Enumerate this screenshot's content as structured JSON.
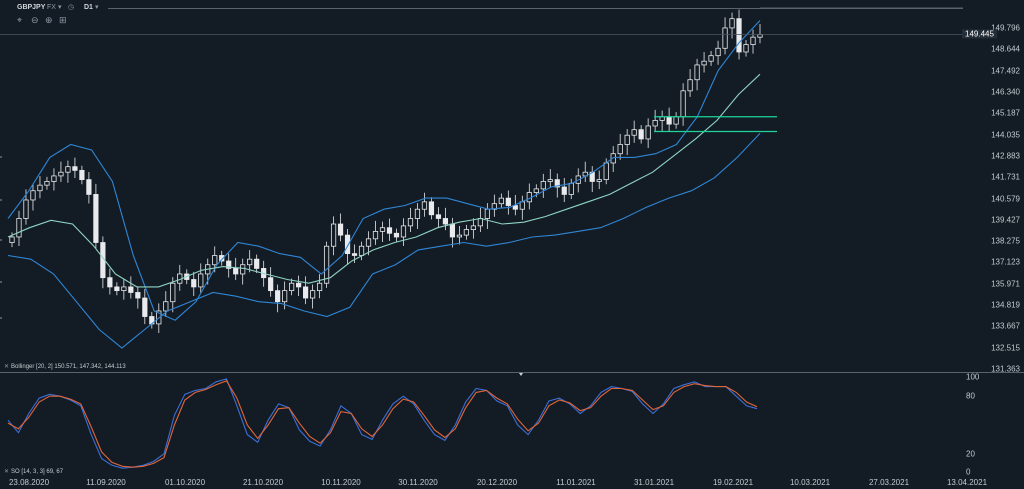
{
  "toolbar": {
    "symbol": "GBPJPY",
    "market": "FX",
    "timeframe": "D1"
  },
  "icons": {
    "crosshair": "crosshair-icon",
    "zoom_out": "zoom-out-icon",
    "zoom_in": "zoom-in-icon",
    "fit": "fit-icon",
    "clock": "clock-icon"
  },
  "indicators": {
    "bollinger": "Bollinger [20, 2] 150.571, 147.342, 144.113",
    "stochastic": "SO [14, 3, 3] 69, 67"
  },
  "price_axis": {
    "labels": [
      "149.796",
      "148.644",
      "147.492",
      "146.340",
      "145.187",
      "144.035",
      "142.883",
      "141.731",
      "140.579",
      "139.427",
      "138.275",
      "137.123",
      "135.971",
      "134.819",
      "133.667",
      "132.515",
      "131.363"
    ],
    "current_price": "149.445"
  },
  "osc_axis": {
    "labels": [
      "100",
      "80",
      "20",
      "0"
    ]
  },
  "date_axis": {
    "labels": [
      "23.08.2020",
      "11.09.2020",
      "01.10.2020",
      "21.10.2020",
      "10.11.2020",
      "30.11.2020",
      "20.12.2020",
      "11.01.2021",
      "31.01.2021",
      "19.02.2021",
      "10.03.2021",
      "27.03.2021",
      "13.04.2021"
    ]
  },
  "colors": {
    "background": "#131c24",
    "candle": "#e8eaed",
    "bollinger_band": "#2f86d6",
    "bollinger_mid": "#8fd4c4",
    "level_lines": "#1fd39a",
    "stoch_k": "#3b6fd8",
    "stoch_d": "#e0653a"
  },
  "chart_data": [
    {
      "type": "candlestick",
      "series": [
        {
          "name": "GBPJPY",
          "values": [
            138.5,
            139.5,
            140.5,
            141.0,
            141.3,
            141.5,
            141.8,
            142.0,
            142.3,
            142.1,
            141.6,
            140.8,
            138.2,
            136.3,
            135.8,
            135.6,
            135.8,
            135.5,
            135.2,
            134.2,
            133.8,
            134.5,
            135.0,
            136.0,
            136.5,
            136.2,
            135.8,
            136.5,
            137.0,
            137.5,
            137.2,
            136.8,
            136.5,
            137.0,
            137.3,
            136.8,
            136.3,
            135.6,
            135.0,
            135.6,
            136.0,
            135.8,
            135.2,
            135.6,
            136.0,
            138.0,
            139.2,
            138.6,
            137.6,
            137.5,
            138.0,
            138.4,
            138.8,
            139.0,
            138.7,
            138.5,
            139.1,
            139.5,
            140.0,
            140.4,
            139.7,
            139.5,
            139.2,
            138.5,
            138.6,
            138.9,
            139.1,
            139.5,
            140.0,
            140.3,
            140.6,
            140.2,
            140.0,
            140.4,
            140.9,
            141.1,
            141.5,
            141.6,
            141.2,
            140.8,
            141.4,
            141.8,
            142.0,
            141.5,
            141.6,
            142.5,
            143.0,
            143.5,
            144.0,
            144.3,
            143.8,
            144.5,
            144.8,
            145.0,
            144.6,
            145.0,
            146.4,
            147.0,
            147.8,
            148.0,
            148.3,
            148.7,
            149.8,
            150.3,
            148.5,
            148.9,
            149.3,
            149.445
          ]
        },
        {
          "name": "Bollinger upper",
          "values": [
            139.5,
            141.0,
            142.8,
            143.5,
            143.2,
            141.5,
            137.5,
            134.5,
            134.0,
            135.0,
            137.0,
            138.2,
            138.0,
            137.6,
            137.4,
            136.5,
            137.5,
            139.5,
            140.0,
            140.2,
            140.6,
            140.6,
            140.3,
            140.0,
            140.1,
            140.6,
            141.2,
            141.4,
            142.0,
            142.8,
            142.8,
            143.0,
            143.5,
            145.0,
            147.5,
            149.0,
            150.2
          ]
        },
        {
          "name": "Bollinger middle",
          "values": [
            138.5,
            139.0,
            139.4,
            139.2,
            138.0,
            136.5,
            135.8,
            135.8,
            136.2,
            136.7,
            136.9,
            136.8,
            136.5,
            136.2,
            136.0,
            136.3,
            137.2,
            137.8,
            138.2,
            138.5,
            139.0,
            139.3,
            139.5,
            139.2,
            139.3,
            139.6,
            140.0,
            140.4,
            140.8,
            141.4,
            142.0,
            142.9,
            143.8,
            144.8,
            146.2,
            147.3
          ]
        },
        {
          "name": "Bollinger lower",
          "values": [
            137.5,
            137.3,
            136.5,
            135.0,
            133.5,
            132.5,
            133.5,
            134.5,
            135.0,
            135.5,
            135.3,
            135.0,
            134.9,
            134.5,
            134.2,
            134.7,
            136.5,
            137.0,
            137.8,
            138.0,
            138.2,
            138.0,
            138.2,
            138.5,
            138.6,
            138.8,
            139.0,
            139.5,
            140.1,
            140.6,
            141.0,
            141.7,
            142.8,
            144.1
          ]
        }
      ],
      "levels": [
        145.0,
        144.2
      ]
    },
    {
      "type": "line",
      "series": [
        {
          "name": "K",
          "values": [
            55,
            42,
            62,
            78,
            82,
            80,
            76,
            70,
            40,
            15,
            8,
            5,
            6,
            8,
            12,
            20,
            60,
            82,
            86,
            88,
            95,
            98,
            70,
            40,
            32,
            55,
            72,
            68,
            45,
            33,
            28,
            45,
            70,
            62,
            40,
            35,
            55,
            72,
            80,
            72,
            55,
            40,
            34,
            50,
            74,
            88,
            86,
            75,
            70,
            50,
            40,
            55,
            75,
            78,
            72,
            62,
            70,
            84,
            90,
            88,
            85,
            72,
            62,
            72,
            88,
            92,
            95,
            90,
            90,
            90,
            80,
            70,
            67
          ]
        },
        {
          "name": "D",
          "values": [
            52,
            46,
            58,
            74,
            80,
            80,
            77,
            72,
            48,
            22,
            11,
            7,
            6,
            7,
            10,
            16,
            50,
            76,
            84,
            87,
            92,
            96,
            78,
            50,
            36,
            50,
            67,
            68,
            52,
            38,
            31,
            42,
            64,
            62,
            46,
            38,
            50,
            67,
            77,
            74,
            60,
            45,
            37,
            46,
            68,
            84,
            86,
            78,
            72,
            56,
            44,
            52,
            70,
            76,
            73,
            65,
            68,
            80,
            88,
            88,
            86,
            76,
            66,
            70,
            84,
            90,
            93,
            91,
            90,
            90,
            84,
            74,
            69
          ]
        }
      ],
      "ylim": [
        0,
        100
      ]
    }
  ]
}
